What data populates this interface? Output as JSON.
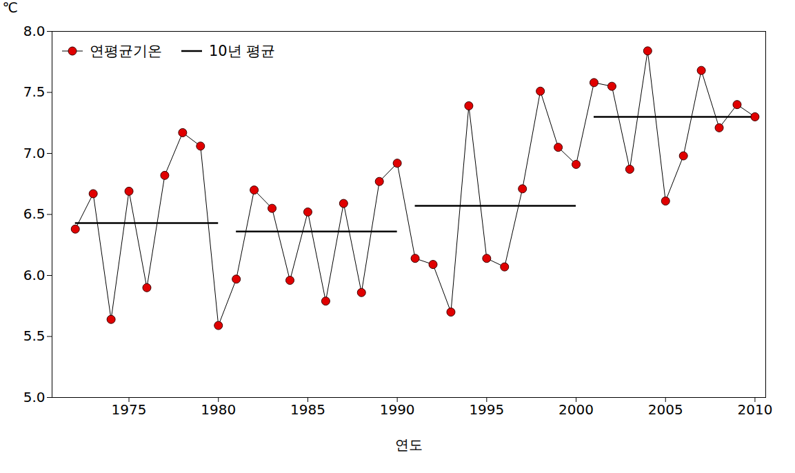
{
  "chart_data": {
    "type": "line",
    "x_label": "연도",
    "y_label": "℃",
    "x": [
      1972,
      1973,
      1974,
      1975,
      1976,
      1977,
      1978,
      1979,
      1980,
      1981,
      1982,
      1983,
      1984,
      1985,
      1986,
      1987,
      1988,
      1989,
      1990,
      1991,
      1992,
      1993,
      1994,
      1995,
      1996,
      1997,
      1998,
      1999,
      2000,
      2001,
      2002,
      2003,
      2004,
      2005,
      2006,
      2007,
      2008,
      2009,
      2010
    ],
    "series": [
      {
        "name": "연평균기온",
        "color": "#e00000",
        "marker": "circle",
        "line_style": "solid",
        "values": [
          6.38,
          6.67,
          5.64,
          6.69,
          5.9,
          6.82,
          7.17,
          7.06,
          5.59,
          5.97,
          6.7,
          6.55,
          5.96,
          6.52,
          5.79,
          6.59,
          5.86,
          6.77,
          6.92,
          6.14,
          6.09,
          5.7,
          7.39,
          6.14,
          6.07,
          6.71,
          7.51,
          7.05,
          6.91,
          7.58,
          7.55,
          6.87,
          7.84,
          6.61,
          6.98,
          7.68,
          7.21,
          7.4,
          7.3
        ]
      },
      {
        "name": "10년 평균",
        "type": "segment",
        "color": "#000000",
        "line_style": "solid",
        "segments": [
          {
            "x1": 1972,
            "x2": 1980,
            "value": 6.43
          },
          {
            "x1": 1981,
            "x2": 1990,
            "value": 6.36
          },
          {
            "x1": 1991,
            "x2": 2000,
            "value": 6.57
          },
          {
            "x1": 2001,
            "x2": 2010,
            "value": 7.3
          }
        ]
      }
    ],
    "xlim": [
      1970.7,
      2010.6
    ],
    "xticks": [
      1975,
      1980,
      1985,
      1990,
      1995,
      2000,
      2005,
      2010
    ],
    "ylim": [
      5,
      8
    ],
    "yticks": [
      {
        "value": 5,
        "label": "5.0"
      },
      5.5,
      {
        "value": 6,
        "label": "6.0"
      },
      6.5,
      {
        "value": 7,
        "label": "7.0"
      },
      7.5,
      {
        "value": 8,
        "label": "8.0"
      }
    ],
    "grid": false,
    "legend": "top-left"
  }
}
